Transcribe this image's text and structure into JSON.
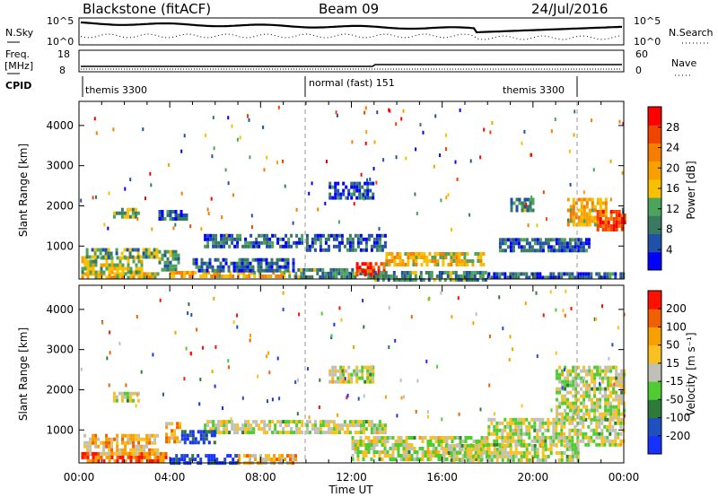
{
  "header": {
    "title_left": "Blackstone (fitACF)",
    "title_center": "Beam 09",
    "title_right": "24/Jul/2016"
  },
  "panels": {
    "nsky": {
      "label": "N.Sky",
      "right_label": "N.Search",
      "ytick_top": "10^5",
      "ytick_bottom": "10^0"
    },
    "freq": {
      "label_line1": "Freq.",
      "label_line2": "[MHz]",
      "ytick_top": "18",
      "ytick_bottom": "8",
      "right_label": "Nave",
      "right_ytick_top": "60",
      "right_ytick_bottom": "0"
    },
    "cpid": {
      "label": "CPID",
      "segments": [
        "themis 3300",
        "normal (fast) 151",
        "themis 3300"
      ]
    }
  },
  "colors": {
    "power_scale": [
      "#0000ff",
      "#2050a8",
      "#3a7a62",
      "#4ca35c",
      "#f8c000",
      "#f8a000",
      "#f57d00",
      "#f04400",
      "#ff0000"
    ],
    "velocity_scale": [
      "#1530ff",
      "#2050c0",
      "#2d7a3a",
      "#4fcc30",
      "#c0c0b8",
      "#f8c020",
      "#f8a000",
      "#f06000",
      "#ff1000"
    ]
  },
  "chart_data": [
    {
      "type": "heatmap",
      "name": "Power",
      "xlabel": "",
      "ylabel": "Slant Range [km]",
      "xlim_hours": [
        0,
        24
      ],
      "ylim_km": [
        180,
        4600
      ],
      "yticks": [
        "1000",
        "2000",
        "3000",
        "4000"
      ],
      "colorbar": {
        "label": "Power [dB]",
        "ticks": [
          "4",
          "8",
          "12",
          "16",
          "20",
          "24",
          "28"
        ],
        "range": [
          0,
          32
        ]
      },
      "regions": [
        {
          "t0": 0.1,
          "t1": 3.5,
          "r0": 200,
          "r1": 350,
          "level": 0.55
        },
        {
          "t0": 0.1,
          "t1": 2.8,
          "r0": 350,
          "r1": 750,
          "level": 0.45
        },
        {
          "t0": 0.3,
          "t1": 3.4,
          "r0": 700,
          "r1": 950,
          "level": 0.35
        },
        {
          "t0": 1.5,
          "t1": 2.6,
          "r0": 1700,
          "r1": 1950,
          "level": 0.4
        },
        {
          "t0": 3.5,
          "t1": 4.8,
          "r0": 1700,
          "r1": 1900,
          "level": 0.2
        },
        {
          "t0": 3.5,
          "t1": 4.4,
          "r0": 400,
          "r1": 900,
          "level": 0.3
        },
        {
          "t0": 4.0,
          "t1": 9.5,
          "r0": 250,
          "r1": 380,
          "level": 0.6
        },
        {
          "t0": 5.0,
          "t1": 9.5,
          "r0": 400,
          "r1": 700,
          "level": 0.2
        },
        {
          "t0": 5.5,
          "t1": 9.8,
          "r0": 950,
          "r1": 1300,
          "level": 0.22
        },
        {
          "t0": 9.5,
          "t1": 13.0,
          "r0": 200,
          "r1": 450,
          "level": 0.3
        },
        {
          "t0": 10.0,
          "t1": 13.5,
          "r0": 900,
          "r1": 1300,
          "level": 0.18
        },
        {
          "t0": 12.2,
          "t1": 13.4,
          "r0": 250,
          "r1": 600,
          "level": 0.9
        },
        {
          "t0": 13.5,
          "t1": 17.8,
          "r0": 500,
          "r1": 850,
          "level": 0.55
        },
        {
          "t0": 13.0,
          "t1": 18.0,
          "r0": 200,
          "r1": 380,
          "level": 0.3
        },
        {
          "t0": 18.0,
          "t1": 24.0,
          "r0": 200,
          "r1": 350,
          "level": 0.2
        },
        {
          "t0": 18.5,
          "t1": 22.5,
          "r0": 900,
          "r1": 1200,
          "level": 0.2
        },
        {
          "t0": 21.5,
          "t1": 23.2,
          "r0": 1500,
          "r1": 2200,
          "level": 0.6
        },
        {
          "t0": 22.8,
          "t1": 24.0,
          "r0": 1400,
          "r1": 1900,
          "level": 0.85
        },
        {
          "t0": 11.0,
          "t1": 13.0,
          "r0": 2200,
          "r1": 2600,
          "level": 0.2
        },
        {
          "t0": 19.0,
          "t1": 20.0,
          "r0": 1900,
          "r1": 2200,
          "level": 0.3
        }
      ]
    },
    {
      "type": "heatmap",
      "name": "Velocity",
      "xlabel": "Time UT",
      "ylabel": "Slant Range [km]",
      "xlim_hours": [
        0,
        24
      ],
      "ylim_km": [
        180,
        4600
      ],
      "xticks": [
        "00:00",
        "04:00",
        "08:00",
        "12:00",
        "16:00",
        "20:00",
        "00:00"
      ],
      "yticks": [
        "1000",
        "2000",
        "3000",
        "4000"
      ],
      "colorbar": {
        "label": "Velocity [m s⁻¹]",
        "ticks": [
          "200",
          "100",
          "50",
          "15",
          "-15",
          "-50",
          "-100",
          "-200"
        ],
        "range": [
          -250,
          250
        ]
      },
      "regions": [
        {
          "t0": 0.1,
          "t1": 3.8,
          "r0": 200,
          "r1": 450,
          "level": 0.85
        },
        {
          "t0": 0.2,
          "t1": 3.5,
          "r0": 450,
          "r1": 900,
          "level": 0.65
        },
        {
          "t0": 3.8,
          "t1": 4.5,
          "r0": 700,
          "r1": 1200,
          "level": 0.7
        },
        {
          "t0": 1.5,
          "t1": 2.6,
          "r0": 1700,
          "r1": 1950,
          "level": 0.5
        },
        {
          "t0": 4.0,
          "t1": 7.0,
          "r0": 200,
          "r1": 400,
          "level": 0.1
        },
        {
          "t0": 7.0,
          "t1": 9.5,
          "r0": 200,
          "r1": 400,
          "level": 0.65
        },
        {
          "t0": 5.5,
          "t1": 9.8,
          "r0": 950,
          "r1": 1250,
          "level": 0.5
        },
        {
          "t0": 4.5,
          "t1": 6.0,
          "r0": 700,
          "r1": 1000,
          "level": 0.1
        },
        {
          "t0": 10.0,
          "t1": 13.5,
          "r0": 900,
          "r1": 1250,
          "level": 0.5
        },
        {
          "t0": 12.0,
          "t1": 18.0,
          "r0": 300,
          "r1": 850,
          "level": 0.5
        },
        {
          "t0": 16.0,
          "t1": 22.0,
          "r0": 250,
          "r1": 650,
          "level": 0.5
        },
        {
          "t0": 18.0,
          "t1": 24.0,
          "r0": 650,
          "r1": 1300,
          "level": 0.5
        },
        {
          "t0": 21.0,
          "t1": 24.0,
          "r0": 1300,
          "r1": 2600,
          "level": 0.5
        },
        {
          "t0": 11.0,
          "t1": 13.0,
          "r0": 2200,
          "r1": 2600,
          "level": 0.5
        }
      ]
    }
  ]
}
